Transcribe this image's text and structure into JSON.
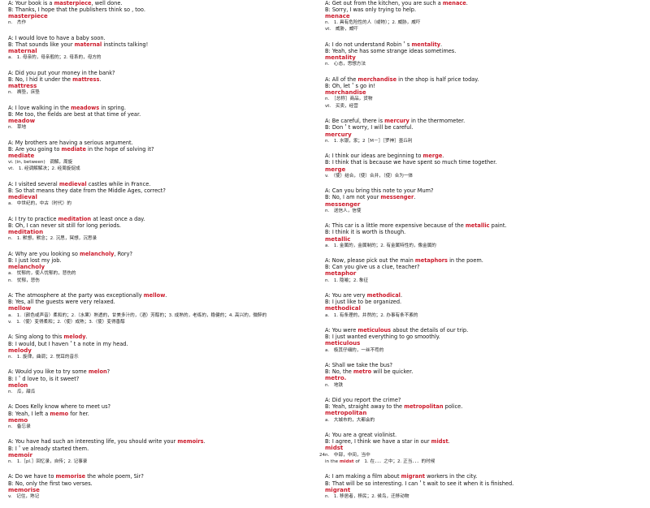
{
  "page_number": "24",
  "left_column": [
    {
      "a": [
        "A: Your book is a ",
        "masterpiece",
        ", well done."
      ],
      "b": "B: Thanks, I hope that the publishers think so , too.",
      "word": "masterpiece",
      "defs": [
        "n.　杰作"
      ]
    },
    {
      "a": [
        "A: I would love to have a baby soon."
      ],
      "b2": [
        "B: That sounds like your ",
        "maternal",
        " instincts talking!"
      ],
      "word": "maternal",
      "defs": [
        "a.　1. 母亲的，母亲般的；2. 母系的，母方的"
      ]
    },
    {
      "a": [
        "A: Did you put your money in the bank?"
      ],
      "b2": [
        "B: No, I hid it under the ",
        "mattress",
        "."
      ],
      "word": "mattress",
      "defs": [
        "n.　褥垫，床垫"
      ]
    },
    {
      "a": [
        "A: I love walking in the ",
        "meadows",
        " in spring."
      ],
      "b": "B: Me too, the fields are best at that time of year.",
      "word": "meadow",
      "defs": [
        "n.　草地"
      ]
    },
    {
      "a": [
        "A: My brothers are having a serious argument."
      ],
      "b2": [
        "B: Are you going to ",
        "mediate",
        " in the hope of solving it?"
      ],
      "word": "mediate",
      "defs": [
        "vi. (in, between)　调解，周旋",
        "vt.　1. 经调解解决；2. 经周旋促成"
      ]
    },
    {
      "a": [
        "A: I visited several ",
        "medieval",
        " castles while in France."
      ],
      "b": "B: So that means they date from the Middle Ages, correct?",
      "word": "medieval",
      "defs": [
        "a.　中世纪的，中古（时代）的"
      ]
    },
    {
      "a": [
        "A: I try to practice ",
        "meditation",
        " at least once a day."
      ],
      "b": "B: Oh, I can never sit still for long periods.",
      "word": "meditation",
      "defs": [
        "n.　1. 默想，默念；2. 沉思，冥想，沉思录"
      ]
    },
    {
      "a": [
        "A: Why are you looking so ",
        "melancholy",
        ", Rory?"
      ],
      "b": "B: I just lost my job.",
      "word": "melancholy",
      "defs": [
        "a.　忧郁的，使人忧郁的，悲伤的",
        "n.　忧郁，悲伤"
      ]
    },
    {
      "a": [
        "A: The atmosphere at the party was exceptionally ",
        "mellow",
        "."
      ],
      "b": "B: Yes, all the guests were very relaxed.",
      "word": "mellow",
      "defs": [
        "a.　1.（颜色或声音）柔和的；2.（水果）熟透的，甘美多汁的，（酒）芳醇的；3. 成熟的，老练的，稳健的；4. 高兴的，微醉的",
        "v.　1.（使）变得柔和；2.（使）成熟；3.（使）变得香醇"
      ]
    },
    {
      "a": [
        "A: Sing along to this ",
        "melody",
        "."
      ],
      "b": "B: I would, but I haven＇t a note in my head.",
      "word": "melody",
      "defs": [
        "n.　1. 旋律，曲调；2. 悦耳的音乐"
      ]
    },
    {
      "a": [
        "A: Would you like to try some ",
        "melon",
        "?"
      ],
      "b": "B: I＇d love to, is it sweet?",
      "word": "melon",
      "defs": [
        "n.　瓜，甜瓜"
      ]
    },
    {
      "a": [
        "A: Does Kelly know where to meet us?"
      ],
      "b2": [
        "B: Yeah, I left a ",
        "memo",
        " for her."
      ],
      "word": "memo",
      "defs": [
        "n.　备忘录"
      ]
    },
    {
      "a": [
        "A: You have had such an interesting life, you should write your ",
        "memoirs",
        "."
      ],
      "b": "B: I＇ve already started them.",
      "word": "memoir",
      "defs": [
        "n.　1.［pl.］回忆录，自传；2. 记事录"
      ]
    },
    {
      "a": [
        "A: Do we have to ",
        "memorise",
        " the whole poem, Sir?"
      ],
      "b": "B: No, only the first two verses.",
      "word": "memorise",
      "defs": [
        "v.　记住，熟记"
      ]
    }
  ],
  "right_column": [
    {
      "a": [
        "A: Get out from the kitchen, you are such a ",
        "menace",
        "."
      ],
      "b": "B: Sorry, I was only trying to help.",
      "word": "menace",
      "defs": [
        "n.　1. 具有危险性的人（或物）；2. 威胁，威吓",
        "vt.　威胁，威吓"
      ]
    },
    {
      "a": [
        "A: I do not understand Robin＇s ",
        "mentality",
        "."
      ],
      "b": "B: Yeah, she has some strange ideas sometimes.",
      "word": "mentality",
      "defs": [
        "n.　心态，思想方法"
      ]
    },
    {
      "a": [
        "A: All of the ",
        "merchandise",
        " in the shop is half price today."
      ],
      "b": "B: Oh, let＇s go in!",
      "word": "merchandise",
      "defs": [
        "n.　［总称］商品，货物",
        "vt.　买卖，经营"
      ]
    },
    {
      "a": [
        "A: Be careful, there is ",
        "mercury",
        " in the thermometer."
      ],
      "b": "B: Don＇t worry, I will be careful.",
      "word": "mercury",
      "defs": [
        "n.　1. 水银，汞；2［M－］［罗神］墨丘利"
      ]
    },
    {
      "a": [
        "A: I think our ideas are beginning to ",
        "merge",
        "."
      ],
      "b": "B: I think that is because we have spent so much time together.",
      "word": "merge",
      "defs": [
        "v.　（使）结合，（使）合并，（使）合为一体"
      ]
    },
    {
      "a": [
        "A: Can you bring this note to your Mum?"
      ],
      "b2": [
        "B: No, I am not your ",
        "messenger",
        "."
      ],
      "word": "messenger",
      "defs": [
        "n.　送信人，信使"
      ]
    },
    {
      "a": [
        "A: This car is a little more expensive because of the ",
        "metallic",
        " paint."
      ],
      "b": "B: I think it is worth is though.",
      "word": "metallic",
      "defs": [
        "a.　1. 金属的，金属制的；2. 有金属特性的，像金属的"
      ]
    },
    {
      "a": [
        "A: Now, please pick out the main ",
        "metaphors",
        " in the poem."
      ],
      "b": "B: Can you give us a clue, teacher?",
      "word": "metaphor",
      "defs": [
        "n.　1. 隐喻；2. 象征"
      ]
    },
    {
      "a": [
        "A: You are very ",
        "methodical",
        "."
      ],
      "b": "B: I just like to be organized.",
      "word": "methodical",
      "defs": [
        "a.　1. 有条理的，井然的；2. 办事有条不紊的"
      ]
    },
    {
      "a": [
        "A: You were ",
        "meticulous",
        " about the details of our trip."
      ],
      "b": "B: I just wanted everything to go smoothly.",
      "word": "meticulous",
      "defs": [
        "a.　极其仔细的，一丝不苟的"
      ]
    },
    {
      "a": [
        "A: Shall we take the bus?"
      ],
      "b2": [
        "B: No, the ",
        "metro",
        " will be quicker."
      ],
      "word": "metro.",
      "defs": [
        "n.　地铁"
      ]
    },
    {
      "a": [
        "A: Did you report the crime?"
      ],
      "b2": [
        "B: Yeah, straight away to the ",
        "metropolitan",
        " police."
      ],
      "word": "metropolitan",
      "defs": [
        "a.　大城市的，大都会的"
      ]
    },
    {
      "a": [
        "A: You are a great violinist."
      ],
      "b2": [
        "B: I agree, I think we have a star in our ",
        "midst",
        "."
      ],
      "word": "midst",
      "defs": [
        "n.　中部，中间，当中"
      ],
      "idiom": [
        "in the ",
        "midst",
        " of　1. 在．．．之中；2. 正当．．．的时候"
      ]
    },
    {
      "a": [
        "A: I am making a film about ",
        "migrant",
        " workers in the city."
      ],
      "b": "B: That will be so interesting. I can＇t wait to see it when it is finished.",
      "word": "migrant",
      "defs": [
        "n.　1. 移居者，移民；2. 候鸟，迁移动物"
      ]
    }
  ]
}
